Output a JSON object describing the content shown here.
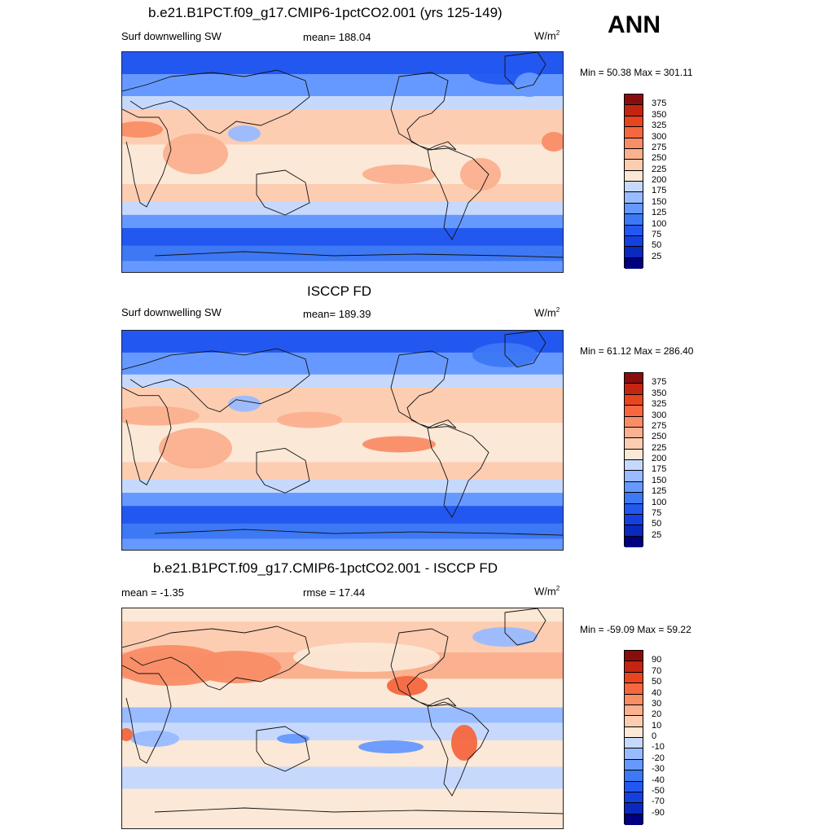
{
  "season": "ANN",
  "colors": {
    "abs": [
      "#000080",
      "#0a29bf",
      "#1540e0",
      "#2358f0",
      "#3d78f5",
      "#6699ff",
      "#99bbff",
      "#c6d9fc",
      "#fbe8d6",
      "#fdcdb2",
      "#fbb08f",
      "#f98d66",
      "#f5673f",
      "#e84420",
      "#c42510",
      "#8a0d0d"
    ],
    "diff": [
      "#000080",
      "#0a29bf",
      "#1540e0",
      "#2358f0",
      "#3d78f5",
      "#6699ff",
      "#99bbff",
      "#c6d9fc",
      "#fbe8d6",
      "#fdcdb2",
      "#fbb08f",
      "#f98d66",
      "#f5673f",
      "#e84420",
      "#c42510",
      "#8a0d0d"
    ]
  },
  "panels": [
    {
      "title": "b.e21.B1PCT.f09_g17.CMIP6-1pctCO2.001 (yrs 125-149)",
      "left_label": "Surf downwelling SW",
      "center_label": "mean= 188.04",
      "units": "W/m",
      "units_sup": "2",
      "minmax": "Min =  50.38 Max = 301.11",
      "ticks": [
        "375",
        "350",
        "325",
        "300",
        "275",
        "250",
        "225",
        "200",
        "175",
        "150",
        "125",
        "100",
        "75",
        "50",
        "25"
      ],
      "variant": "model"
    },
    {
      "title": "ISCCP FD",
      "left_label": "Surf downwelling SW",
      "center_label": "mean= 189.39",
      "units": "W/m",
      "units_sup": "2",
      "minmax": "Min =  61.12 Max = 286.40",
      "ticks": [
        "375",
        "350",
        "325",
        "300",
        "275",
        "250",
        "225",
        "200",
        "175",
        "150",
        "125",
        "100",
        "75",
        "50",
        "25"
      ],
      "variant": "obs"
    },
    {
      "title": "b.e21.B1PCT.f09_g17.CMIP6-1pctCO2.001 - ISCCP FD",
      "left_label": "mean =  -1.35",
      "center_label": "rmse =  17.44",
      "units": "W/m",
      "units_sup": "2",
      "minmax": "Min = -59.09 Max =  59.22",
      "ticks": [
        "90",
        "70",
        "50",
        "40",
        "30",
        "20",
        "10",
        "0",
        "-10",
        "-20",
        "-30",
        "-40",
        "-50",
        "-70",
        "-90"
      ],
      "variant": "diff"
    }
  ]
}
